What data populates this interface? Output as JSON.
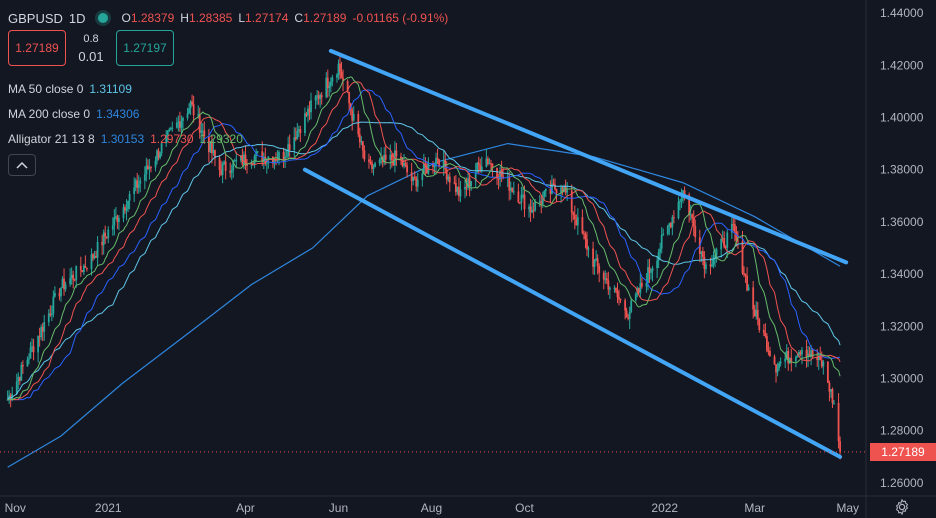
{
  "header": {
    "symbol": "GBPUSD",
    "interval": "1D",
    "open_label": "O",
    "open": "1.28379",
    "high_label": "H",
    "high": "1.28385",
    "low_label": "L",
    "low": "1.27174",
    "close_label": "C",
    "close": "1.27189",
    "change": "-0.01165 (-0.91%)"
  },
  "trade": {
    "sell": "1.27189",
    "spread_top": "0.8",
    "spread_bottom": "0.01",
    "buy": "1.27197"
  },
  "indicators": {
    "ma50": {
      "label": "MA 50 close 0",
      "value": "1.31109"
    },
    "ma200": {
      "label": "MA 200 close 0",
      "value": "1.34306"
    },
    "alligator": {
      "label": "Alligator 21 13 8",
      "jaw": "1.30153",
      "teeth": "1.29730",
      "lips": "1.29320"
    }
  },
  "last_price": "1.27189",
  "colors": {
    "up": "#26a69a",
    "down": "#ef5350",
    "ma50": "#5ec6e8",
    "ma200": "#2e86de",
    "jaw": "#2962ff",
    "teeth": "#ef5350",
    "lips": "#66bb6a",
    "channel": "#42a5f5",
    "background": "#131722"
  },
  "icons": {
    "collapse": "chevron-up-icon",
    "settings": "gear-icon",
    "status": "live-dot-icon"
  },
  "chart_data": {
    "type": "line",
    "symbol": "GBPUSD",
    "interval": "1D",
    "y_ticks": [
      "1.44000",
      "1.42000",
      "1.40000",
      "1.38000",
      "1.36000",
      "1.34000",
      "1.32000",
      "1.30000",
      "1.28000",
      "1.26000"
    ],
    "x_ticks": [
      "Nov",
      "2021",
      "Apr",
      "Jun",
      "Aug",
      "Oct",
      "2022",
      "Mar",
      "May"
    ],
    "ylim": [
      1.255,
      1.445
    ],
    "series": [
      {
        "name": "GBPUSD",
        "x": [
          "2020-10-27",
          "2020-11-15",
          "2020-12-01",
          "2020-12-20",
          "2021-01-10",
          "2021-02-01",
          "2021-02-24",
          "2021-03-15",
          "2021-04-05",
          "2021-04-25",
          "2021-05-15",
          "2021-06-01",
          "2021-06-20",
          "2021-07-10",
          "2021-07-20",
          "2021-08-05",
          "2021-08-20",
          "2021-09-05",
          "2021-09-20",
          "2021-10-05",
          "2021-10-25",
          "2021-11-15",
          "2021-12-08",
          "2021-12-25",
          "2022-01-13",
          "2022-01-28",
          "2022-02-15",
          "2022-03-01",
          "2022-03-15",
          "2022-04-01",
          "2022-04-15",
          "2022-04-22",
          "2022-04-26"
        ],
        "y": [
          1.292,
          1.315,
          1.335,
          1.345,
          1.365,
          1.385,
          1.405,
          1.38,
          1.385,
          1.385,
          1.405,
          1.42,
          1.38,
          1.385,
          1.375,
          1.385,
          1.37,
          1.385,
          1.375,
          1.365,
          1.375,
          1.345,
          1.325,
          1.345,
          1.372,
          1.343,
          1.357,
          1.325,
          1.305,
          1.312,
          1.305,
          1.29,
          1.27189
        ]
      },
      {
        "name": "MA 200",
        "x": [
          "2020-10-27",
          "2020-12-01",
          "2021-01-10",
          "2021-02-24",
          "2021-04-05",
          "2021-05-15",
          "2021-06-20",
          "2021-08-05",
          "2021-09-20",
          "2021-11-15",
          "2022-01-13",
          "2022-03-01",
          "2022-04-26"
        ],
        "y": [
          1.266,
          1.278,
          1.298,
          1.318,
          1.336,
          1.35,
          1.37,
          1.383,
          1.39,
          1.385,
          1.375,
          1.362,
          1.343
        ]
      }
    ],
    "channel_lines": [
      {
        "x": [
          "2021-05-27",
          "2022-04-30"
        ],
        "y": [
          1.4255,
          1.3445
        ]
      },
      {
        "x": [
          "2021-05-10",
          "2022-04-26"
        ],
        "y": [
          1.38,
          1.27
        ]
      }
    ],
    "last_price": 1.27189
  }
}
